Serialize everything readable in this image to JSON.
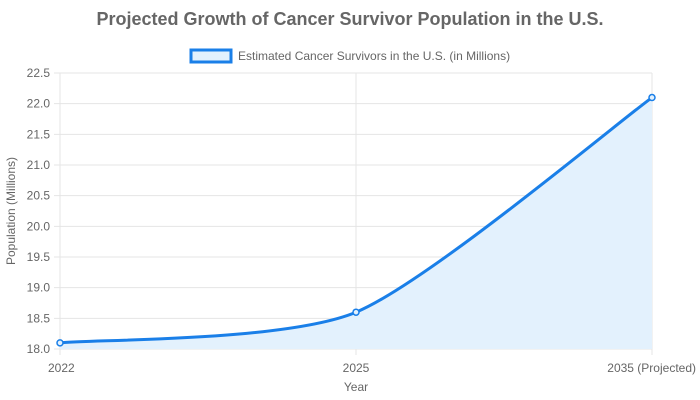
{
  "chart_data": {
    "type": "line",
    "title": "Projected Growth of Cancer Survivor Population in the U.S.",
    "xlabel": "Year",
    "ylabel": "Population (Millions)",
    "categories": [
      "2022",
      "2025",
      "2035 (Projected)"
    ],
    "series": [
      {
        "name": "Estimated Cancer Survivors in the U.S. (in Millions)",
        "values": [
          18.1,
          18.6,
          22.1
        ],
        "color": "#1a7fe8",
        "fill": "#e3f1fd"
      }
    ],
    "ylim": [
      18.0,
      22.5
    ],
    "yticks": [
      "18.0",
      "18.5",
      "19.0",
      "19.5",
      "20.0",
      "20.5",
      "21.0",
      "21.5",
      "22.0",
      "22.5"
    ],
    "grid": true,
    "legend_position": "top-center",
    "filled_area": true
  }
}
